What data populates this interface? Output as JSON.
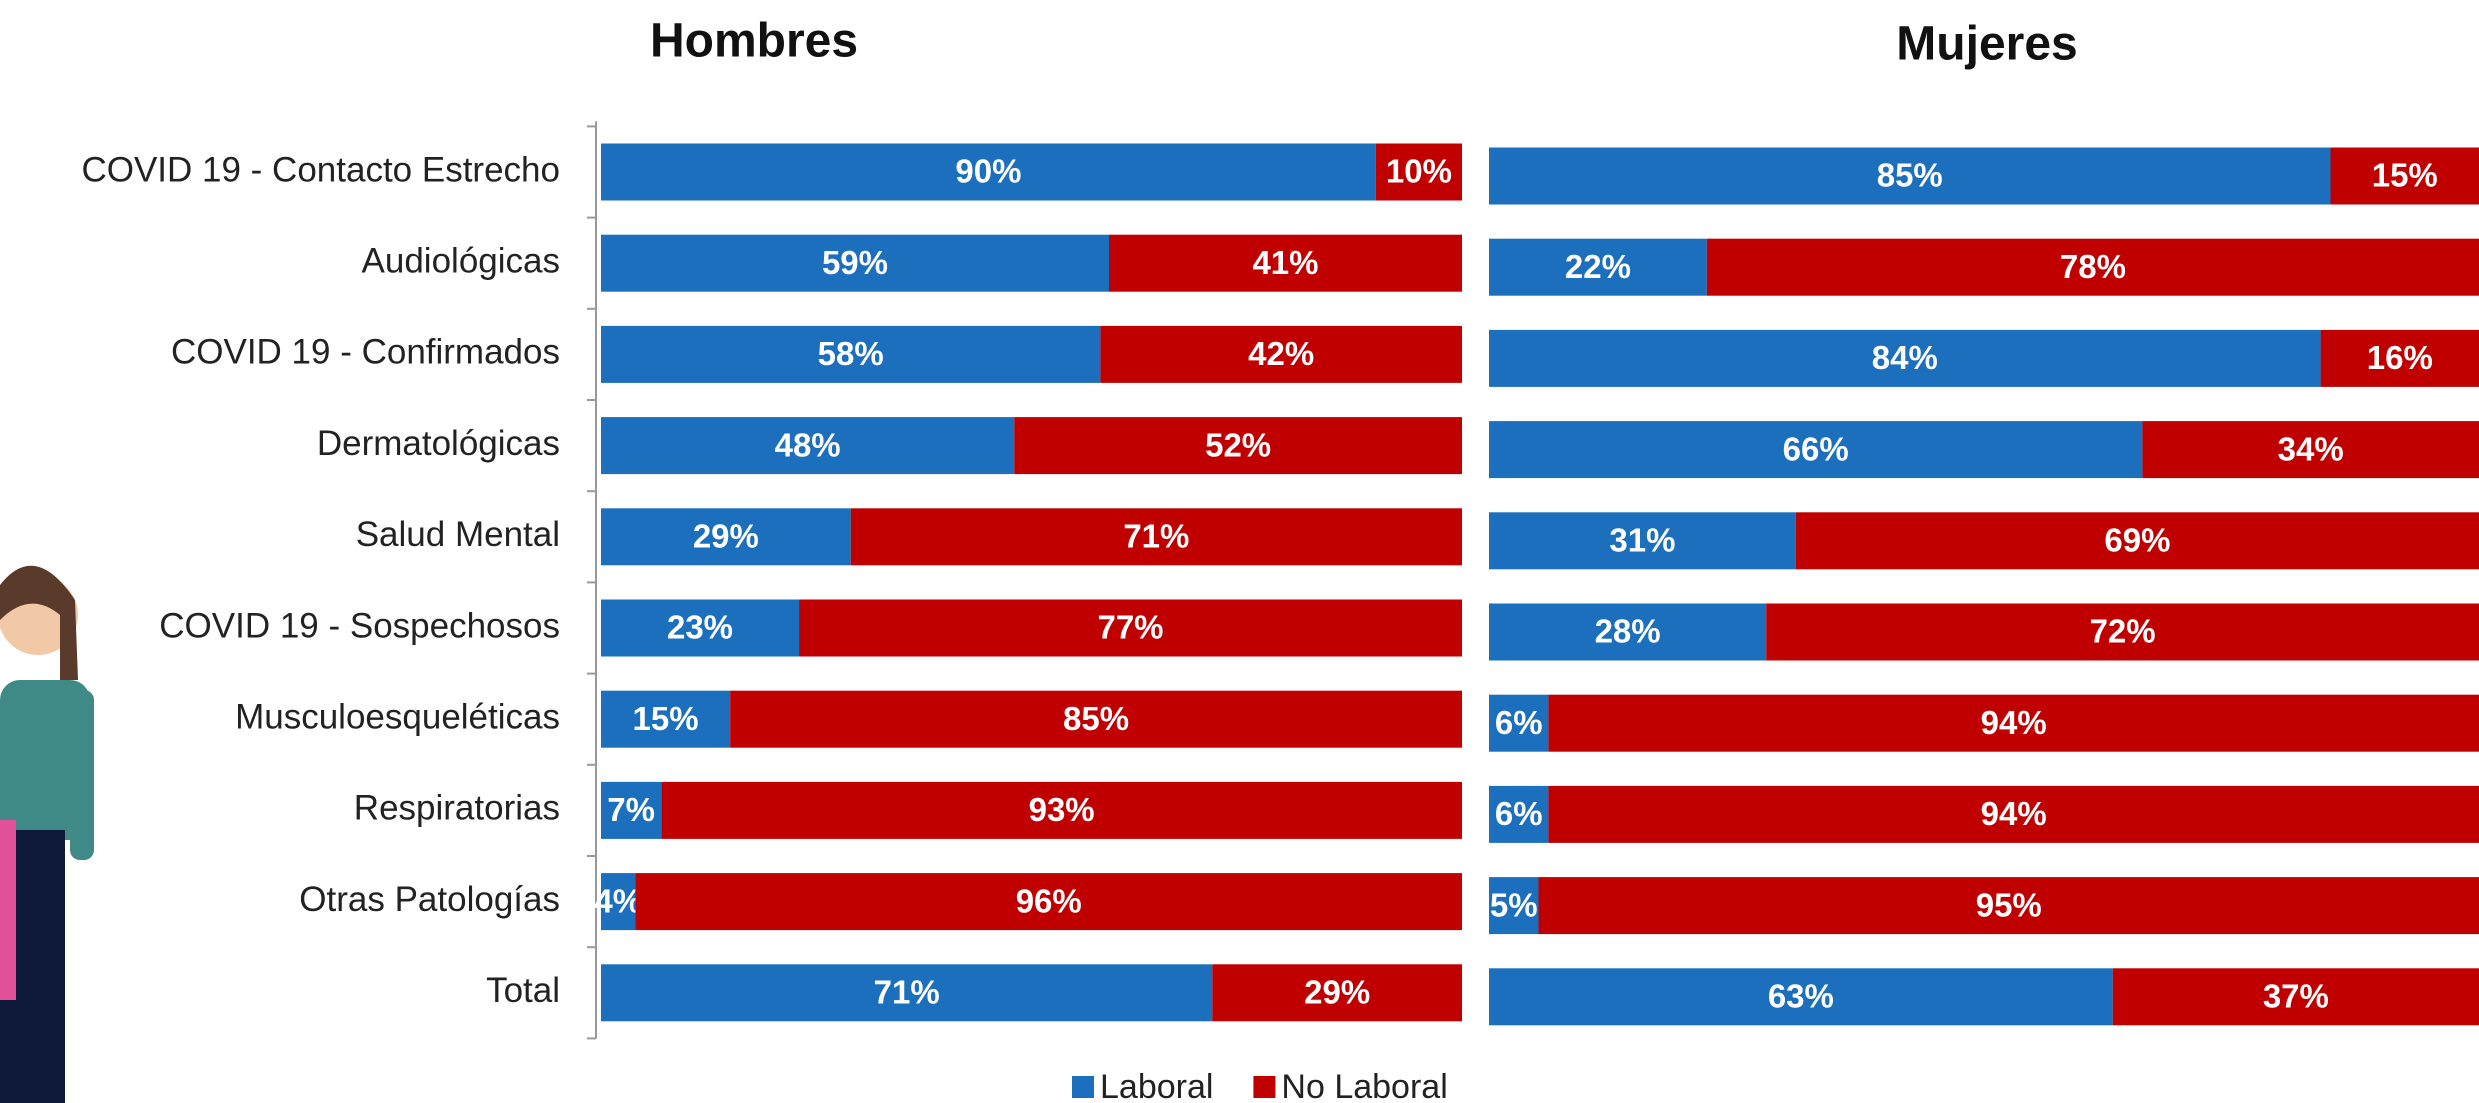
{
  "chart_data": [
    {
      "type": "stacked-bar-horizontal",
      "title": "Hombres",
      "categories": [
        "COVID 19 - Contacto Estrecho",
        "Audiológicas",
        "COVID 19 - Confirmados",
        "Dermatológicas",
        "Salud Mental",
        "COVID 19 - Sospechosos",
        "Musculoesqueléticas",
        "Respiratorias",
        "Otras Patologías",
        "Total"
      ],
      "xlim": [
        0,
        100
      ],
      "series": [
        {
          "name": "Laboral",
          "color": "#1b6fbd",
          "values": [
            90,
            59,
            58,
            48,
            29,
            23,
            15,
            7,
            4,
            71
          ],
          "value_labels": [
            "90%",
            "59%",
            "58%",
            "48%",
            "29%",
            "23%",
            "15%",
            "7%",
            "4%",
            "71%"
          ]
        },
        {
          "name": "No Laboral",
          "color": "#c00000",
          "values": [
            10,
            41,
            42,
            52,
            71,
            77,
            85,
            93,
            96,
            29
          ],
          "value_labels": [
            "10%",
            "41%",
            "42%",
            "52%",
            "71%",
            "77%",
            "85%",
            "93%",
            "96%",
            "29%"
          ]
        }
      ]
    },
    {
      "type": "stacked-bar-horizontal",
      "title": "Mujeres",
      "xlim": [
        0,
        100
      ],
      "series": [
        {
          "color": "#1b6fbd",
          "values": [
            85,
            22,
            84,
            66,
            31,
            28,
            6,
            6,
            5,
            63
          ],
          "value_labels": [
            "85%",
            "22%",
            "84%",
            "66%",
            "31%",
            "28%",
            "6%",
            "6%",
            "5%",
            "63%"
          ]
        },
        {
          "color": "#c00000",
          "values": [
            15,
            78,
            16,
            34,
            69,
            72,
            94,
            94,
            95,
            37
          ],
          "value_labels": [
            "15%",
            "78%",
            "16%",
            "34%",
            "69%",
            "72%",
            "94%",
            "94%",
            "95%",
            "37%"
          ]
        }
      ]
    }
  ]
}
